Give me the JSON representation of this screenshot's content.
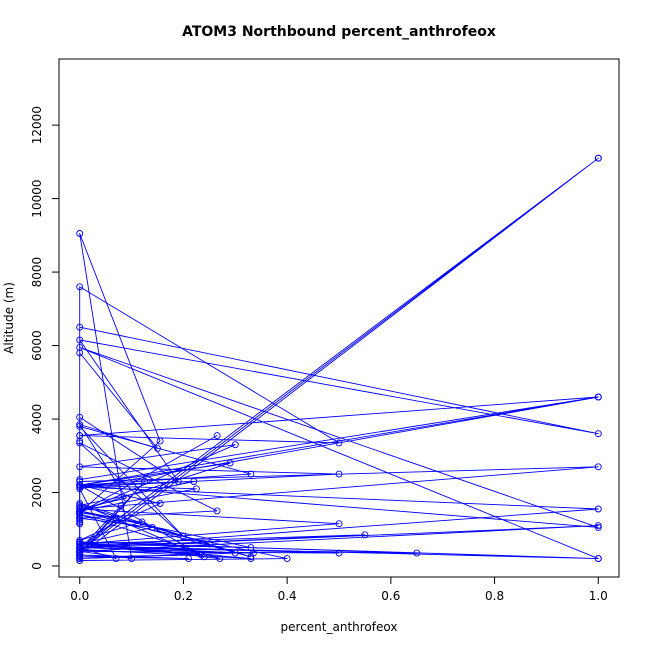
{
  "chart_data": {
    "type": "line",
    "title": "ATOM3 Northbound percent_anthrofeox",
    "xlabel": "percent_anthrofeox",
    "ylabel": "Altitude (m)",
    "xlim": [
      -0.04,
      1.04
    ],
    "ylim": [
      -300,
      13800
    ],
    "x_ticks": [
      0.0,
      0.2,
      0.4,
      0.6,
      0.8,
      1.0
    ],
    "x_tick_labels": [
      "0.0",
      "0.2",
      "0.4",
      "0.6",
      "0.8",
      "1.0"
    ],
    "y_ticks": [
      0,
      2000,
      4000,
      6000,
      8000,
      10000,
      12000
    ],
    "y_tick_labels": [
      "0",
      "2000",
      "4000",
      "6000",
      "8000",
      "10000",
      "12000"
    ],
    "grid": false,
    "legend": "none",
    "series_color": "#0000ff",
    "marker": "open-circle",
    "series": [
      {
        "x": [
          0.0,
          0.0,
          0.0,
          0.0,
          0.0,
          1.0,
          0.0,
          0.0,
          0.5,
          0.0,
          0.0,
          1.0,
          0.0,
          0.19,
          0.0,
          0.0,
          0.15,
          0.0,
          0.09,
          0.0,
          0.0,
          1.0,
          0.0,
          0.0,
          0.0,
          0.07,
          0.0,
          0.33,
          0.0,
          0.22,
          0.0,
          0.24,
          0.0,
          0.25,
          0.0,
          0.27,
          0.0,
          0.4,
          0.0,
          0.0,
          0.0,
          0.0,
          0.0,
          0.3,
          0.0,
          0.33,
          0.0,
          0.0,
          0.0,
          0.0,
          0.0,
          0.0,
          0.0,
          0.0,
          0.0,
          1.0,
          0.0,
          0.0,
          0.0,
          0.0
        ],
        "y": [
          200,
          250,
          300,
          350,
          400,
          11100,
          300,
          7600,
          3350,
          3550,
          6500,
          3600,
          6150,
          2300,
          4050,
          5800,
          3200,
          3850,
          1850,
          1550,
          2350,
          4600,
          3550,
          3400,
          1450,
          1300,
          1500,
          250,
          1650,
          2300,
          2200,
          250,
          1700,
          600,
          650,
          200,
          1400,
          200,
          150,
          200,
          200,
          300,
          200,
          350,
          600,
          500,
          1500,
          1600,
          1450,
          1350,
          1300,
          1250,
          1200,
          1150,
          400,
          11100,
          500,
          300,
          450,
          300
        ]
      },
      {
        "x": [
          0.0,
          0.0,
          0.0,
          1.0,
          0.0,
          0.5,
          0.0,
          0.55,
          0.0,
          1.0,
          0.0,
          0.1,
          0.0,
          0.155,
          0.0,
          0.265,
          0.0,
          0.3,
          0.0,
          0.5,
          0.0,
          1.0,
          0.0,
          0.65,
          0.0,
          1.0,
          0.0
        ],
        "y": [
          1150,
          1300,
          2300,
          2700,
          1550,
          1150,
          600,
          850,
          500,
          1100,
          400,
          200,
          9050,
          3400,
          1450,
          3550,
          1450,
          3300,
          2700,
          2500,
          2150,
          1550,
          500,
          350,
          650,
          200,
          550
        ]
      },
      {
        "x": [
          0.0,
          0.0,
          0.0,
          0.0,
          0.07,
          0.12,
          0.0,
          0.155,
          0.0,
          0.225,
          0.0,
          0.29,
          0.0,
          0.33,
          0.0,
          0.2,
          0.0,
          0.265,
          0.0,
          0.14,
          0.0,
          0.33,
          0.0,
          0.08
        ],
        "y": [
          1400,
          1650,
          650,
          350,
          1250,
          1200,
          700,
          1700,
          2200,
          2100,
          1500,
          2800,
          2200,
          2500,
          3800,
          800,
          3350,
          1500,
          1300,
          1050,
          600,
          200,
          450,
          1650
        ]
      },
      {
        "x": [
          0.0,
          0.125,
          0.0,
          0.21,
          0.0,
          0.235,
          0.0,
          0.5,
          0.0,
          0.335,
          0.0,
          0.07,
          0.0,
          1.0,
          0.0,
          1.0,
          0.0,
          1.0
        ],
        "y": [
          350,
          2300,
          300,
          200,
          250,
          300,
          550,
          350,
          400,
          350,
          500,
          200,
          2100,
          4600,
          2200,
          1050,
          5950,
          200
        ]
      }
    ]
  }
}
